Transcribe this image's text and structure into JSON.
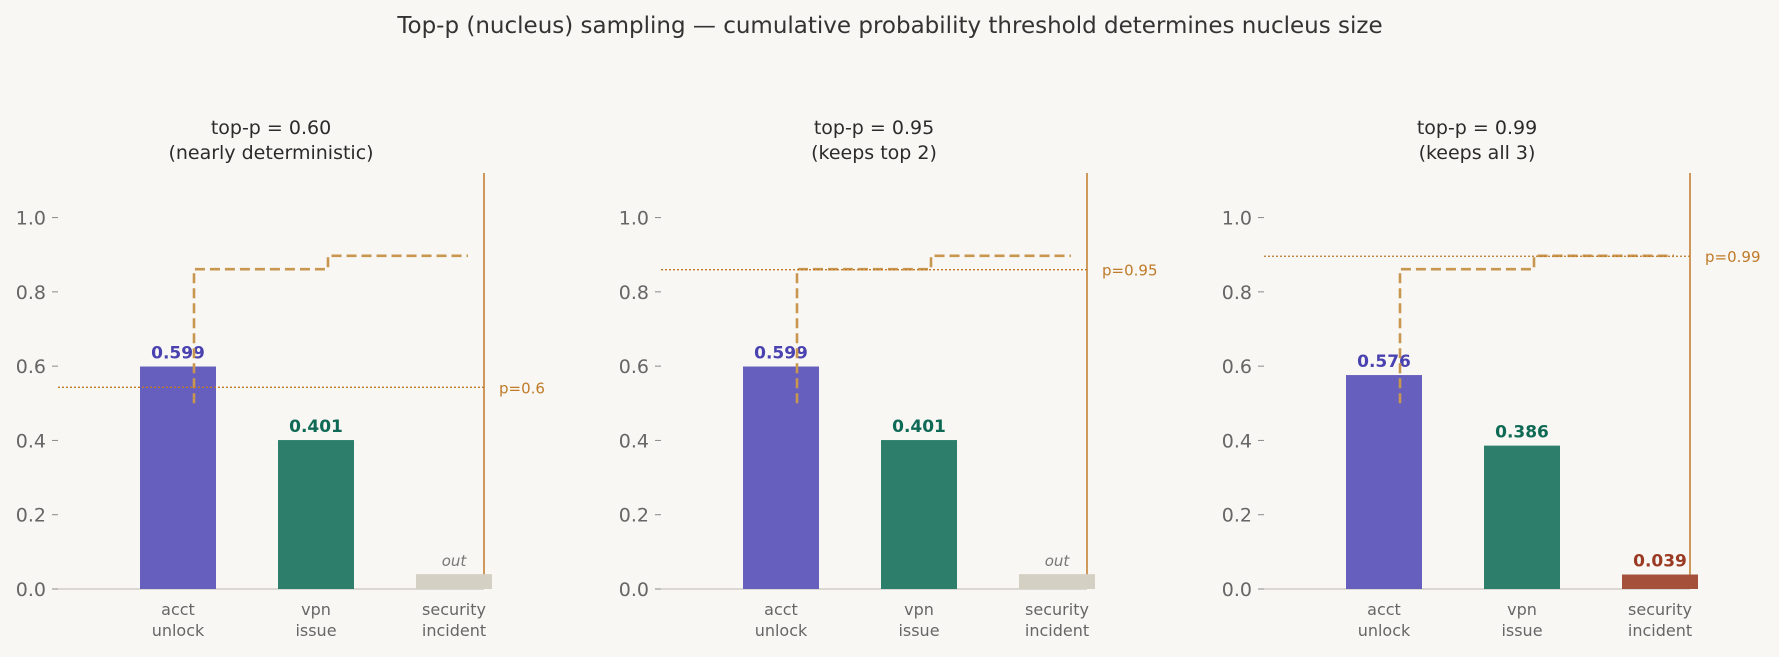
{
  "title": "Top-p (nucleus) sampling — cumulative probability threshold determines nucleus size",
  "colors": {
    "acct": "#675fbd",
    "vpn": "#2d7f6b",
    "security_in": "#a4503a",
    "excluded": "#d5d0c4",
    "threshold": "#c07a28",
    "cumulative": "#c8964e",
    "acct_text": "#4a42b0",
    "vpn_text": "#0f6a55",
    "security_text": "#9a3a22"
  },
  "chart_data": [
    {
      "type": "bar",
      "title_lines": [
        "top-p = 0.60",
        "(nearly deterministic)"
      ],
      "categories": [
        [
          "acct",
          "unlock"
        ],
        [
          "vpn",
          "issue"
        ],
        [
          "security",
          "incident"
        ]
      ],
      "values": [
        0.599,
        0.401,
        0.04
      ],
      "labels": [
        "0.599",
        "0.401",
        "out"
      ],
      "in_nucleus": [
        true,
        true,
        false
      ],
      "cumulative": [
        0.861,
        0.897
      ],
      "threshold": 0.6,
      "threshold_label": "p=0.6",
      "yticks": [
        "0.0",
        "0.2",
        "0.4",
        "0.6",
        "0.8",
        "1.0"
      ],
      "ylim": [
        0,
        1.12
      ]
    },
    {
      "type": "bar",
      "title_lines": [
        "top-p = 0.95",
        "(keeps top 2)"
      ],
      "categories": [
        [
          "acct",
          "unlock"
        ],
        [
          "vpn",
          "issue"
        ],
        [
          "security",
          "incident"
        ]
      ],
      "values": [
        0.599,
        0.401,
        0.04
      ],
      "labels": [
        "0.599",
        "0.401",
        "out"
      ],
      "in_nucleus": [
        true,
        true,
        false
      ],
      "cumulative": [
        0.861,
        0.897
      ],
      "threshold": 0.95,
      "threshold_label": "p=0.95",
      "yticks": [
        "0.0",
        "0.2",
        "0.4",
        "0.6",
        "0.8",
        "1.0"
      ],
      "ylim": [
        0,
        1.12
      ]
    },
    {
      "type": "bar",
      "title_lines": [
        "top-p = 0.99",
        "(keeps all 3)"
      ],
      "categories": [
        [
          "acct",
          "unlock"
        ],
        [
          "vpn",
          "issue"
        ],
        [
          "security",
          "incident"
        ]
      ],
      "values": [
        0.576,
        0.386,
        0.039
      ],
      "labels": [
        "0.576",
        "0.386",
        "0.039"
      ],
      "in_nucleus": [
        true,
        true,
        true
      ],
      "cumulative": [
        0.861,
        0.897
      ],
      "threshold": 0.99,
      "threshold_label": "p=0.99",
      "yticks": [
        "0.0",
        "0.2",
        "0.4",
        "0.6",
        "0.8",
        "1.0"
      ],
      "ylim": [
        0,
        1.12
      ]
    }
  ]
}
